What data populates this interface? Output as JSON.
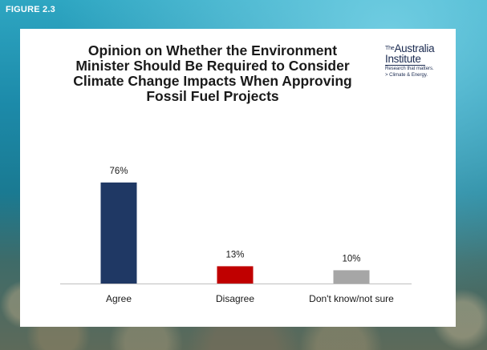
{
  "figure_label": "FIGURE 2.3",
  "logo": {
    "the": "The",
    "line1": "Australia",
    "line2": "Institute",
    "tagline": "Research that matters.",
    "program": "> Climate & Energy."
  },
  "chart_data": {
    "type": "bar",
    "title": "Opinion on Whether the Environment Minister Should Be Required to Consider Climate Change Impacts When Approving Fossil Fuel Projects",
    "title_lines": [
      "Opinion on Whether the Environment",
      "Minister Should Be Required to Consider",
      "Climate Change Impacts When Approving",
      "Fossil Fuel Projects"
    ],
    "categories": [
      "Agree",
      "Disagree",
      "Don't know/not sure"
    ],
    "values": [
      76,
      13,
      10
    ],
    "data_labels": [
      "76%",
      "13%",
      "10%"
    ],
    "colors": [
      "#1f3864",
      "#c00000",
      "#a6a6a6"
    ],
    "ylim": [
      0,
      100
    ],
    "xlabel": "",
    "ylabel": "",
    "grid": false,
    "legend": "none"
  }
}
